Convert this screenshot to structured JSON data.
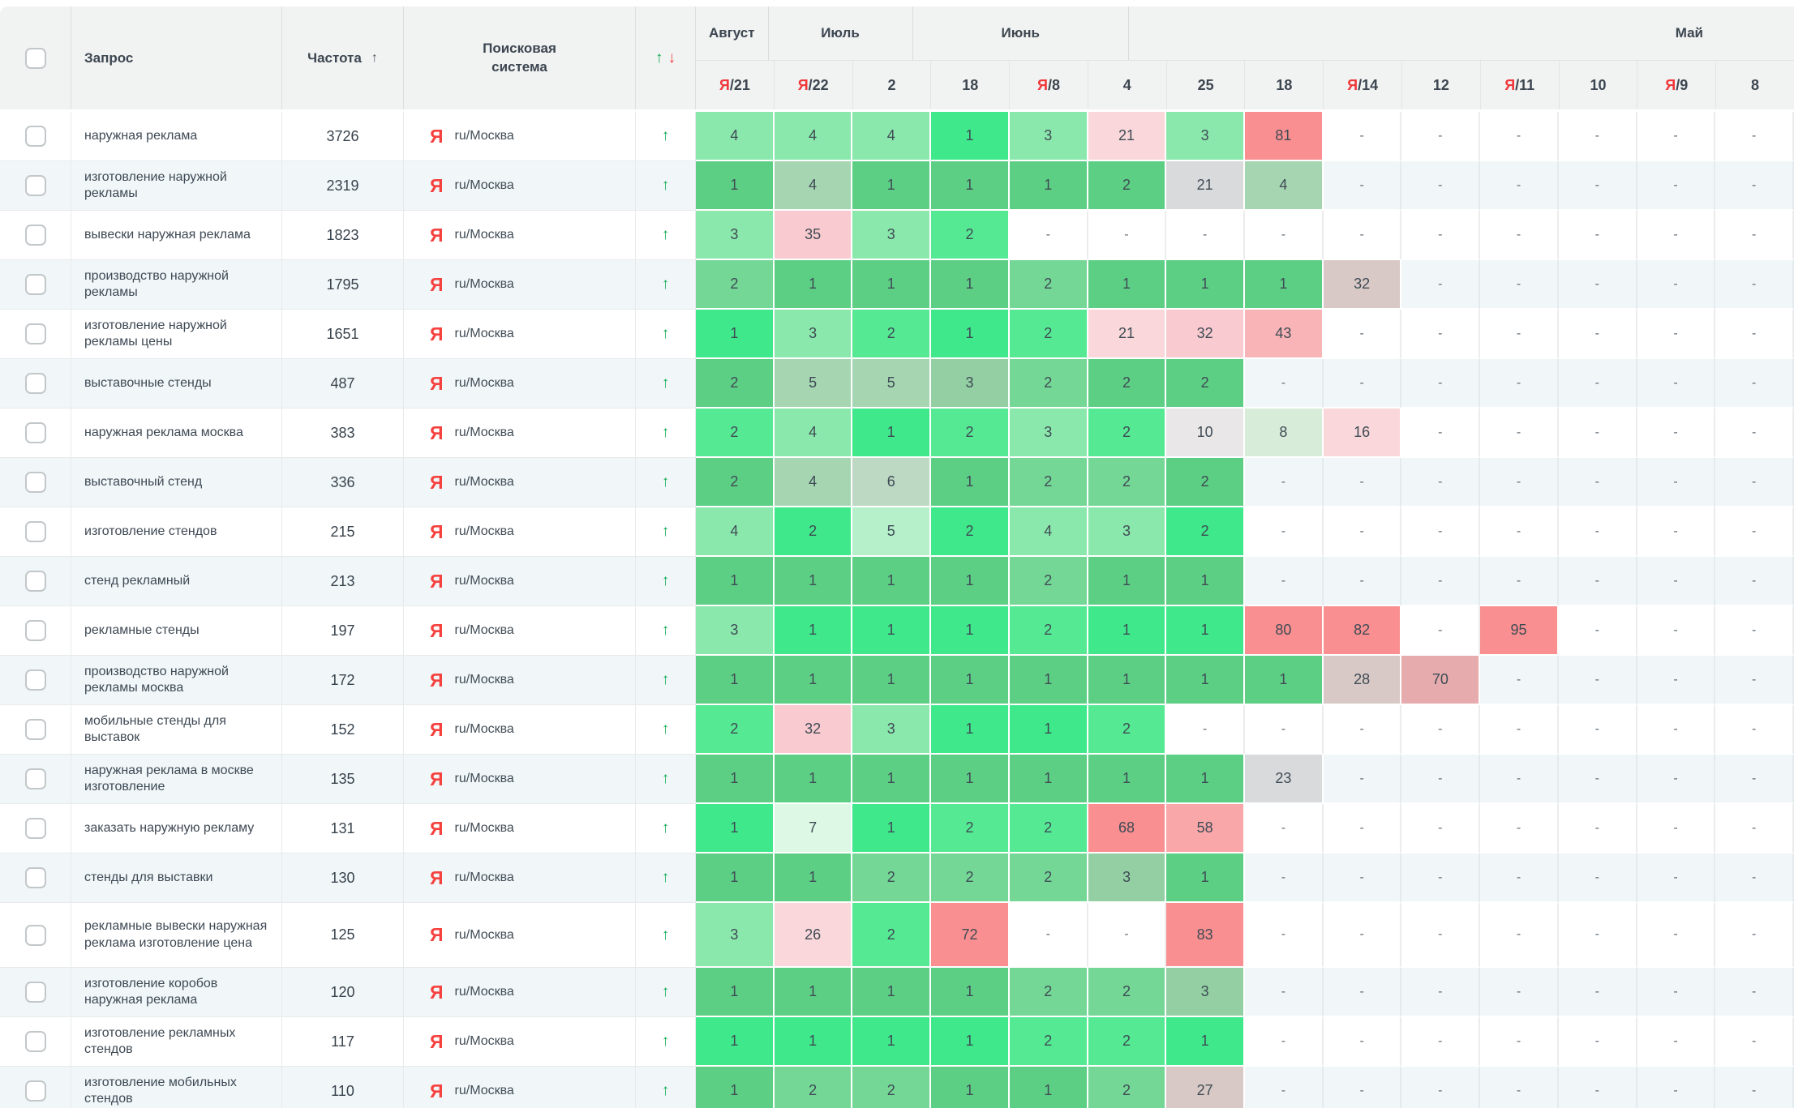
{
  "palette": {
    "G1": "#3fe98b",
    "G2": "#55e994",
    "G3": "#8be8ac",
    "G4": "#b5f0cb",
    "G5": "#5dcf85",
    "G6": "#74d796",
    "G7": "#a6d5b1",
    "G8": "#93cfa3",
    "G9": "#bdd8c3",
    "G10": "#d7ecd9",
    "G11": "#ddf8e4",
    "P1": "#f9d7da",
    "P2": "#f9cad0",
    "P3": "#f8b4b6",
    "P4": "#f98f90",
    "P5": "#f9a7a9",
    "P6": "#e5abad",
    "T1": "#d8c9c6",
    "GY1": "#d9dadc",
    "GY2": "#e9e7e8"
  },
  "colors": {
    "header_bg": "#f1f2f2",
    "stripe": "#f1f7f9",
    "trend_up": "#0cab51",
    "trend_down": "#ef4444",
    "yandex_red": "#f0383b",
    "text": "#3e4954"
  },
  "header": {
    "columns": {
      "query": "Запрос",
      "frequency": "Частота",
      "frequency_sort_icon": "↑",
      "engine": "Поисковая система",
      "dynamics_up": "↑",
      "dynamics_down": "↓"
    },
    "month_groups": [
      {
        "label": "Август",
        "span": 1
      },
      {
        "label": "Июль",
        "span": 2
      },
      {
        "label": "Июнь",
        "span": 3
      },
      {
        "label": "Май",
        "span": 8,
        "end": true
      }
    ],
    "date_columns": [
      {
        "ya": true,
        "label": "21"
      },
      {
        "ya": true,
        "label": "22"
      },
      {
        "label": "2"
      },
      {
        "label": "18"
      },
      {
        "ya": true,
        "label": "8"
      },
      {
        "label": "4"
      },
      {
        "label": "25"
      },
      {
        "label": "18"
      },
      {
        "ya": true,
        "label": "14"
      },
      {
        "label": "12"
      },
      {
        "ya": true,
        "label": "11"
      },
      {
        "label": "10"
      },
      {
        "ya": true,
        "label": "9"
      },
      {
        "label": "8"
      }
    ]
  },
  "engine_cell": {
    "icon": "Я",
    "label": "ru/Москва"
  },
  "row_trend_icon": "↑",
  "empty_value": "-",
  "rows": [
    {
      "query": "наружная реклама",
      "frequency": "3726",
      "cells": [
        [
          "4",
          "G3"
        ],
        [
          "4",
          "G3"
        ],
        [
          "4",
          "G3"
        ],
        [
          "1",
          "G1"
        ],
        [
          "3",
          "G3"
        ],
        [
          "21",
          "P1"
        ],
        [
          "3",
          "G3"
        ],
        [
          "81",
          "P4"
        ],
        [
          "-"
        ],
        [
          "-"
        ],
        [
          "-"
        ],
        [
          "-"
        ],
        [
          "-"
        ],
        [
          "-"
        ]
      ]
    },
    {
      "query": "изготовление наружной рекламы",
      "frequency": "2319",
      "cells": [
        [
          "1",
          "G5"
        ],
        [
          "4",
          "G7"
        ],
        [
          "1",
          "G5"
        ],
        [
          "1",
          "G5"
        ],
        [
          "1",
          "G5"
        ],
        [
          "2",
          "G5"
        ],
        [
          "21",
          "GY1"
        ],
        [
          "4",
          "G7"
        ],
        [
          "-"
        ],
        [
          "-"
        ],
        [
          "-"
        ],
        [
          "-"
        ],
        [
          "-"
        ],
        [
          "-"
        ]
      ]
    },
    {
      "query": "вывески наружная реклама",
      "frequency": "1823",
      "cells": [
        [
          "3",
          "G3"
        ],
        [
          "35",
          "P2"
        ],
        [
          "3",
          "G3"
        ],
        [
          "2",
          "G2"
        ],
        [
          "-"
        ],
        [
          "-"
        ],
        [
          "-"
        ],
        [
          "-"
        ],
        [
          "-"
        ],
        [
          "-"
        ],
        [
          "-"
        ],
        [
          "-"
        ],
        [
          "-"
        ],
        [
          "-"
        ]
      ]
    },
    {
      "query": "производство наружной рекламы",
      "frequency": "1795",
      "cells": [
        [
          "2",
          "G6"
        ],
        [
          "1",
          "G5"
        ],
        [
          "1",
          "G5"
        ],
        [
          "1",
          "G5"
        ],
        [
          "2",
          "G6"
        ],
        [
          "1",
          "G5"
        ],
        [
          "1",
          "G5"
        ],
        [
          "1",
          "G5"
        ],
        [
          "32",
          "T1"
        ],
        [
          "-"
        ],
        [
          "-"
        ],
        [
          "-"
        ],
        [
          "-"
        ],
        [
          "-"
        ]
      ]
    },
    {
      "query": "изготовление наружной рекламы цены",
      "frequency": "1651",
      "cells": [
        [
          "1",
          "G1"
        ],
        [
          "3",
          "G3"
        ],
        [
          "2",
          "G2"
        ],
        [
          "1",
          "G1"
        ],
        [
          "2",
          "G2"
        ],
        [
          "21",
          "P1"
        ],
        [
          "32",
          "P2"
        ],
        [
          "43",
          "P3"
        ],
        [
          "-"
        ],
        [
          "-"
        ],
        [
          "-"
        ],
        [
          "-"
        ],
        [
          "-"
        ],
        [
          "-"
        ]
      ]
    },
    {
      "query": "выставочные стенды",
      "frequency": "487",
      "cells": [
        [
          "2",
          "G5"
        ],
        [
          "5",
          "G7"
        ],
        [
          "5",
          "G7"
        ],
        [
          "3",
          "G8"
        ],
        [
          "2",
          "G6"
        ],
        [
          "2",
          "G5"
        ],
        [
          "2",
          "G5"
        ],
        [
          "-"
        ],
        [
          "-"
        ],
        [
          "-"
        ],
        [
          "-"
        ],
        [
          "-"
        ],
        [
          "-"
        ],
        [
          "-"
        ]
      ]
    },
    {
      "query": "наружная реклама москва",
      "frequency": "383",
      "cells": [
        [
          "2",
          "G2"
        ],
        [
          "4",
          "G3"
        ],
        [
          "1",
          "G1"
        ],
        [
          "2",
          "G2"
        ],
        [
          "3",
          "G3"
        ],
        [
          "2",
          "G2"
        ],
        [
          "10",
          "GY2"
        ],
        [
          "8",
          "G10"
        ],
        [
          "16",
          "P1"
        ],
        [
          "-"
        ],
        [
          "-"
        ],
        [
          "-"
        ],
        [
          "-"
        ],
        [
          "-"
        ]
      ]
    },
    {
      "query": "выставочный стенд",
      "frequency": "336",
      "cells": [
        [
          "2",
          "G5"
        ],
        [
          "4",
          "G7"
        ],
        [
          "6",
          "G9"
        ],
        [
          "1",
          "G5"
        ],
        [
          "2",
          "G6"
        ],
        [
          "2",
          "G6"
        ],
        [
          "2",
          "G5"
        ],
        [
          "-"
        ],
        [
          "-"
        ],
        [
          "-"
        ],
        [
          "-"
        ],
        [
          "-"
        ],
        [
          "-"
        ],
        [
          "-"
        ]
      ]
    },
    {
      "query": "изготовление стендов",
      "frequency": "215",
      "cells": [
        [
          "4",
          "G3"
        ],
        [
          "2",
          "G1"
        ],
        [
          "5",
          "G4"
        ],
        [
          "2",
          "G1"
        ],
        [
          "4",
          "G3"
        ],
        [
          "3",
          "G3"
        ],
        [
          "2",
          "G1"
        ],
        [
          "-"
        ],
        [
          "-"
        ],
        [
          "-"
        ],
        [
          "-"
        ],
        [
          "-"
        ],
        [
          "-"
        ],
        [
          "-"
        ]
      ]
    },
    {
      "query": "стенд рекламный",
      "frequency": "213",
      "cells": [
        [
          "1",
          "G5"
        ],
        [
          "1",
          "G5"
        ],
        [
          "1",
          "G5"
        ],
        [
          "1",
          "G5"
        ],
        [
          "2",
          "G6"
        ],
        [
          "1",
          "G5"
        ],
        [
          "1",
          "G5"
        ],
        [
          "-"
        ],
        [
          "-"
        ],
        [
          "-"
        ],
        [
          "-"
        ],
        [
          "-"
        ],
        [
          "-"
        ],
        [
          "-"
        ]
      ]
    },
    {
      "query": "рекламные стенды",
      "frequency": "197",
      "cells": [
        [
          "3",
          "G3"
        ],
        [
          "1",
          "G1"
        ],
        [
          "1",
          "G1"
        ],
        [
          "1",
          "G1"
        ],
        [
          "2",
          "G2"
        ],
        [
          "1",
          "G1"
        ],
        [
          "1",
          "G1"
        ],
        [
          "80",
          "P4"
        ],
        [
          "82",
          "P4"
        ],
        [
          "-"
        ],
        [
          "95",
          "P4"
        ],
        [
          "-"
        ],
        [
          "-"
        ],
        [
          "-"
        ]
      ]
    },
    {
      "query": "производство наружной рекламы москва",
      "frequency": "172",
      "cells": [
        [
          "1",
          "G5"
        ],
        [
          "1",
          "G5"
        ],
        [
          "1",
          "G5"
        ],
        [
          "1",
          "G5"
        ],
        [
          "1",
          "G5"
        ],
        [
          "1",
          "G5"
        ],
        [
          "1",
          "G5"
        ],
        [
          "1",
          "G5"
        ],
        [
          "28",
          "T1"
        ],
        [
          "70",
          "P6"
        ],
        [
          "-"
        ],
        [
          "-"
        ],
        [
          "-"
        ],
        [
          "-"
        ]
      ]
    },
    {
      "query": "мобильные стенды для выставок",
      "frequency": "152",
      "cells": [
        [
          "2",
          "G2"
        ],
        [
          "32",
          "P2"
        ],
        [
          "3",
          "G3"
        ],
        [
          "1",
          "G1"
        ],
        [
          "1",
          "G1"
        ],
        [
          "2",
          "G2"
        ],
        [
          "-"
        ],
        [
          "-"
        ],
        [
          "-"
        ],
        [
          "-"
        ],
        [
          "-"
        ],
        [
          "-"
        ],
        [
          "-"
        ],
        [
          "-"
        ]
      ]
    },
    {
      "query": "наружная реклама в москве изготовление",
      "frequency": "135",
      "cells": [
        [
          "1",
          "G5"
        ],
        [
          "1",
          "G5"
        ],
        [
          "1",
          "G5"
        ],
        [
          "1",
          "G5"
        ],
        [
          "1",
          "G5"
        ],
        [
          "1",
          "G5"
        ],
        [
          "1",
          "G5"
        ],
        [
          "23",
          "GY1"
        ],
        [
          "-"
        ],
        [
          "-"
        ],
        [
          "-"
        ],
        [
          "-"
        ],
        [
          "-"
        ],
        [
          "-"
        ]
      ]
    },
    {
      "query": "заказать наружную рекламу",
      "frequency": "131",
      "cells": [
        [
          "1",
          "G1"
        ],
        [
          "7",
          "G11"
        ],
        [
          "1",
          "G1"
        ],
        [
          "2",
          "G2"
        ],
        [
          "2",
          "G2"
        ],
        [
          "68",
          "P4"
        ],
        [
          "58",
          "P5"
        ],
        [
          "-"
        ],
        [
          "-"
        ],
        [
          "-"
        ],
        [
          "-"
        ],
        [
          "-"
        ],
        [
          "-"
        ],
        [
          "-"
        ]
      ]
    },
    {
      "query": "стенды для выставки",
      "frequency": "130",
      "cells": [
        [
          "1",
          "G5"
        ],
        [
          "1",
          "G5"
        ],
        [
          "2",
          "G6"
        ],
        [
          "2",
          "G6"
        ],
        [
          "2",
          "G6"
        ],
        [
          "3",
          "G8"
        ],
        [
          "1",
          "G5"
        ],
        [
          "-"
        ],
        [
          "-"
        ],
        [
          "-"
        ],
        [
          "-"
        ],
        [
          "-"
        ],
        [
          "-"
        ],
        [
          "-"
        ]
      ]
    },
    {
      "query": "рекламные вывески наружная реклама изготовление цена",
      "frequency": "125",
      "tall": true,
      "cells": [
        [
          "3",
          "G3"
        ],
        [
          "26",
          "P1"
        ],
        [
          "2",
          "G2"
        ],
        [
          "72",
          "P4"
        ],
        [
          "-"
        ],
        [
          "-"
        ],
        [
          "83",
          "P4"
        ],
        [
          "-"
        ],
        [
          "-"
        ],
        [
          "-"
        ],
        [
          "-"
        ],
        [
          "-"
        ],
        [
          "-"
        ],
        [
          "-"
        ]
      ]
    },
    {
      "query": "изготовление коробов наружная реклама",
      "frequency": "120",
      "cells": [
        [
          "1",
          "G5"
        ],
        [
          "1",
          "G5"
        ],
        [
          "1",
          "G5"
        ],
        [
          "1",
          "G5"
        ],
        [
          "2",
          "G6"
        ],
        [
          "2",
          "G6"
        ],
        [
          "3",
          "G8"
        ],
        [
          "-"
        ],
        [
          "-"
        ],
        [
          "-"
        ],
        [
          "-"
        ],
        [
          "-"
        ],
        [
          "-"
        ],
        [
          "-"
        ]
      ]
    },
    {
      "query": "изготовление рекламных стендов",
      "frequency": "117",
      "cells": [
        [
          "1",
          "G1"
        ],
        [
          "1",
          "G1"
        ],
        [
          "1",
          "G1"
        ],
        [
          "1",
          "G1"
        ],
        [
          "2",
          "G2"
        ],
        [
          "2",
          "G2"
        ],
        [
          "1",
          "G1"
        ],
        [
          "-"
        ],
        [
          "-"
        ],
        [
          "-"
        ],
        [
          "-"
        ],
        [
          "-"
        ],
        [
          "-"
        ],
        [
          "-"
        ]
      ]
    },
    {
      "query": "изготовление мобильных стендов",
      "frequency": "110",
      "cells": [
        [
          "1",
          "G5"
        ],
        [
          "2",
          "G6"
        ],
        [
          "2",
          "G6"
        ],
        [
          "1",
          "G5"
        ],
        [
          "1",
          "G5"
        ],
        [
          "2",
          "G6"
        ],
        [
          "27",
          "T1"
        ],
        [
          "-"
        ],
        [
          "-"
        ],
        [
          "-"
        ],
        [
          "-"
        ],
        [
          "-"
        ],
        [
          "-"
        ],
        [
          "-"
        ]
      ]
    }
  ]
}
